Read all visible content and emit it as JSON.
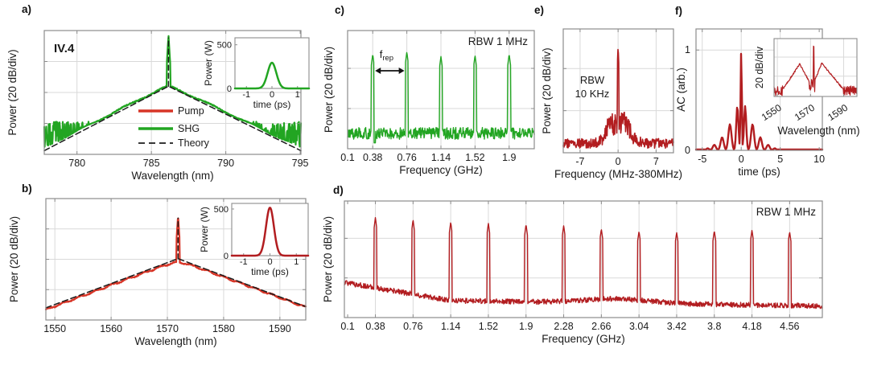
{
  "figure": {
    "panel_labels": [
      "a)",
      "b)",
      "c)",
      "d)",
      "e)",
      "f)"
    ],
    "colors": {
      "green": "#22a522",
      "red_bright": "#d73527",
      "red_dark": "#b21d20",
      "theory": "#1c1c1c",
      "grid": "#d9d9d9",
      "axis": "#8c8c8c",
      "text": "#1a1a1a"
    }
  },
  "chart_data": [
    {
      "id": "a",
      "type": "line",
      "subtype": "spectrum",
      "xlabel": "Wavelength (nm)",
      "ylabel": "Power (20 dB/div)",
      "xlim": [
        777.8,
        795.05
      ],
      "xticks": [
        "780",
        "785",
        "790",
        "795"
      ],
      "xtick_vals": [
        780,
        785,
        790,
        795
      ],
      "annotation": "IV.4",
      "legend": [
        {
          "label": "Pump",
          "color_key": "red_bright",
          "dash": false
        },
        {
          "label": "SHG",
          "color_key": "green",
          "dash": false
        },
        {
          "label": "Theory",
          "color_key": "theory",
          "dash": true
        }
      ],
      "series": {
        "color_key": "green",
        "center": 786.15,
        "apex": 0.55,
        "edge_left": 0.04,
        "edge_right": 0.04,
        "round": 0.3,
        "spike": 0.965,
        "spike_halfwidth": 0.12,
        "noise_left": 781.3,
        "noise_right": 791.55,
        "noise_floor": 0.15,
        "noise_amp": 0.115,
        "seed": 11
      },
      "theory": {
        "edge_left": 0.03,
        "edge_right": 0.03,
        "apex": 0.55,
        "spike": 0.94
      },
      "inset": {
        "xlabel": "time (ps)",
        "ylabel": "Power (W)",
        "xticks": [
          "-1",
          "0",
          "1"
        ],
        "xtick_vals": [
          -1,
          0,
          1
        ],
        "yticks": [
          "0",
          "500"
        ],
        "ytick_vals": [
          0,
          500
        ],
        "xlim": [
          -1.45,
          1.45
        ],
        "ylim": [
          0,
          580
        ],
        "peak_w": 295,
        "sigma_ps": 0.17,
        "color_key": "green"
      }
    },
    {
      "id": "b",
      "type": "line",
      "subtype": "spectrum",
      "xlabel": "Wavelength (nm)",
      "ylabel": "Power (20 dB/div)",
      "xlim": [
        1548.4,
        1594.6
      ],
      "xticks": [
        "1550",
        "1560",
        "1570",
        "1580",
        "1590"
      ],
      "xtick_vals": [
        1550,
        1560,
        1570,
        1580,
        1590
      ],
      "annotation": "",
      "series": {
        "color_key": "red_bright",
        "center": 1571.9,
        "apex": 0.48,
        "edge_left": 0.07,
        "edge_right": 0.09,
        "round": 1.2,
        "spike": 0.86,
        "spike_halfwidth": 0.3,
        "noise_left": 1540,
        "noise_right": 1600,
        "noise_floor": 0.1,
        "noise_amp": 0.05,
        "seed": 21
      },
      "theory": {
        "edge_left": 0.1,
        "edge_right": 0.11,
        "apex": 0.505,
        "spike": 0.84
      },
      "inset": {
        "xlabel": "time (ps)",
        "ylabel": "Power (W)",
        "xticks": [
          "-1",
          "0",
          "1"
        ],
        "xtick_vals": [
          -1,
          0,
          1
        ],
        "yticks": [
          "0",
          "500"
        ],
        "ytick_vals": [
          0,
          500
        ],
        "xlim": [
          -1.45,
          1.45
        ],
        "ylim": [
          0,
          560
        ],
        "peak_w": 515,
        "sigma_ps": 0.15,
        "color_key": "red_dark"
      }
    },
    {
      "id": "c",
      "type": "line",
      "subtype": "comb",
      "xlabel": "Frequency (GHz)",
      "ylabel": "Power (20 dB/div)",
      "xlim": [
        0.1,
        2.18
      ],
      "xticks": [
        "0.1",
        "0.38",
        "0.76",
        "1.14",
        "1.52",
        "1.9"
      ],
      "xtick_vals": [
        0.1,
        0.38,
        0.76,
        1.14,
        1.52,
        1.9
      ],
      "annotation": "RBW 1 MHz",
      "f_rep_label": "f",
      "f_rep_sub": "rep",
      "series": {
        "color_key": "green",
        "peaks": [
          0.38,
          0.76,
          1.14,
          1.52,
          1.9
        ],
        "peak_heights": [
          0.8,
          0.82,
          0.78,
          0.79,
          0.8
        ],
        "noise_floor": 0.13,
        "noise_amp": 0.05,
        "seed": 7,
        "dip_after_first": true
      }
    },
    {
      "id": "d",
      "type": "line",
      "subtype": "comb",
      "xlabel": "Frequency (GHz)",
      "ylabel": "Power (20 dB/div)",
      "xlim": [
        0.067,
        4.89
      ],
      "xticks": [
        "0.1",
        "0.38",
        "0.76",
        "1.14",
        "1.52",
        "1.9",
        "2.28",
        "2.66",
        "3.04",
        "3.42",
        "3.8",
        "4.18",
        "4.56"
      ],
      "xtick_vals": [
        0.1,
        0.38,
        0.76,
        1.14,
        1.52,
        1.9,
        2.28,
        2.66,
        3.04,
        3.42,
        3.8,
        4.18,
        4.56
      ],
      "annotation": "RBW 1 MHz",
      "series": {
        "color_key": "red_dark",
        "peaks": [
          0.38,
          0.76,
          1.14,
          1.52,
          1.9,
          2.28,
          2.66,
          3.04,
          3.42,
          3.8,
          4.18,
          4.56
        ],
        "peak_heights": [
          0.86,
          0.84,
          0.82,
          0.81,
          0.8,
          0.79,
          0.76,
          0.74,
          0.73,
          0.745,
          0.75,
          0.735
        ],
        "noise_floor": 0.145,
        "noise_amp": 0.022,
        "seed": 3,
        "floor_start": 0.3,
        "floor_knee": 1.15,
        "floor_flat": 0.145,
        "floor_end": 0.1,
        "bump_center": 2.82,
        "bump_amp": 0.035,
        "dip_after_first": false
      }
    },
    {
      "id": "e",
      "type": "line",
      "subtype": "beatnote",
      "xlabel": "Frequency (MHz-380MHz)",
      "ylabel": "Power (20 dB/div)",
      "xlim": [
        -10.1,
        10.2
      ],
      "xticks": [
        "-7",
        "0",
        "7"
      ],
      "xtick_vals": [
        -7,
        0,
        7
      ],
      "annotation_lines": [
        "RBW",
        "10 KHz"
      ],
      "series": {
        "color_key": "red_dark",
        "spike": 0.86,
        "floor": 0.075,
        "pedestal_amp": 0.16,
        "pedestal_sigma": 2.4,
        "hump_amp": 0.06,
        "hump_pos": 1.7,
        "hump_sigma": 0.8,
        "seed": 5
      }
    },
    {
      "id": "f",
      "type": "line",
      "subtype": "autocorr",
      "xlabel": "time (ps)",
      "ylabel": "AC (arb.)",
      "xlim": [
        -5.8,
        10.4
      ],
      "ylim": [
        0,
        1.21
      ],
      "xticks": [
        "-5",
        "0",
        "5",
        "10"
      ],
      "xtick_vals": [
        -5,
        0,
        5,
        10
      ],
      "yticks": [
        "0",
        "1"
      ],
      "ytick_vals": [
        0,
        1
      ],
      "series": {
        "color_key": "red_dark",
        "components": [
          [
            0,
            1.0,
            0.11
          ],
          [
            0.5,
            0.44,
            0.2
          ],
          [
            -0.5,
            0.44,
            0.2
          ],
          [
            1.45,
            0.26,
            0.28
          ],
          [
            -1.45,
            0.26,
            0.28
          ],
          [
            2.45,
            0.13,
            0.28
          ],
          [
            -2.45,
            0.13,
            0.28
          ],
          [
            3.45,
            0.055,
            0.28
          ],
          [
            -3.45,
            0.055,
            0.28
          ],
          [
            4.3,
            0.02,
            0.24
          ],
          [
            -4.3,
            0.02,
            0.24
          ]
        ]
      },
      "inset": {
        "xlabel": "Wavelength (nm)",
        "ylabel": "20 dB/div",
        "xticks": [
          "1550",
          "1570",
          "1590"
        ],
        "xtick_vals": [
          1550,
          1570,
          1590
        ],
        "xlim": [
          1548,
          1598
        ],
        "noise_left": 1553.5,
        "noise_right": 1589.8,
        "notch": [
          1569.2,
          1572.9
        ],
        "left_lobe": [
          1553.5,
          0.13,
          1563.5,
          0.56,
          1569.2,
          0.26
        ],
        "right_lobe": [
          1572.9,
          0.3,
          1576.8,
          0.58,
          1589.8,
          0.12
        ],
        "spike_center": 1571.9,
        "spike": 0.93,
        "color_key": "red_dark",
        "seed": 13
      }
    }
  ]
}
